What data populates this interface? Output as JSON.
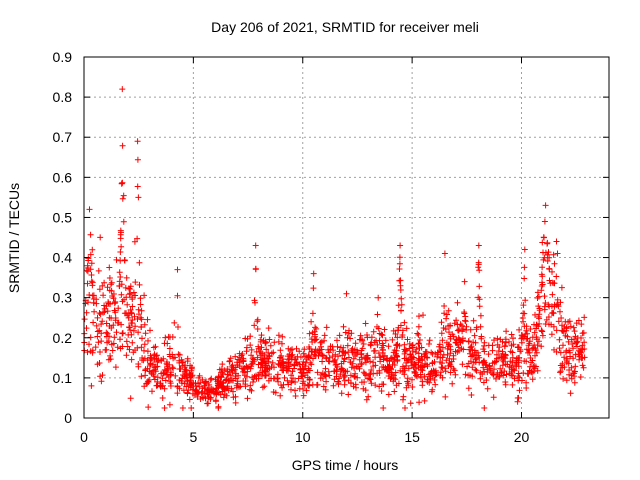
{
  "chart_data": {
    "type": "scatter",
    "title": "Day 206 of 2021, SRMTID for receiver meli",
    "xlabel": "GPS time / hours",
    "ylabel": "SRMTID / TECUs",
    "xlim": [
      0,
      24
    ],
    "ylim": [
      0,
      0.9
    ],
    "xticks": [
      0,
      5,
      10,
      15,
      20
    ],
    "xtick_labels": [
      "0",
      "5",
      "10",
      "15",
      "20"
    ],
    "yticks": [
      0,
      0.1,
      0.2,
      0.3,
      0.4,
      0.5,
      0.6,
      0.7,
      0.8,
      0.9
    ],
    "ytick_labels": [
      "0",
      "0.1",
      "0.2",
      "0.3",
      "0.4",
      "0.5",
      "0.6",
      "0.7",
      "0.8",
      "0.9"
    ],
    "grid": true,
    "marker": "+",
    "marker_color": "#ff0000",
    "x_data_end": 22.9,
    "profile": [
      [
        0.0,
        0.22,
        0.09
      ],
      [
        0.3,
        0.24,
        0.09
      ],
      [
        0.6,
        0.24,
        0.08
      ],
      [
        1.0,
        0.24,
        0.08
      ],
      [
        1.4,
        0.26,
        0.09
      ],
      [
        1.8,
        0.27,
        0.1
      ],
      [
        2.2,
        0.25,
        0.09
      ],
      [
        2.6,
        0.18,
        0.07
      ],
      [
        3.0,
        0.13,
        0.05
      ],
      [
        3.5,
        0.12,
        0.04
      ],
      [
        4.0,
        0.12,
        0.05
      ],
      [
        4.5,
        0.11,
        0.04
      ],
      [
        5.0,
        0.08,
        0.03
      ],
      [
        5.5,
        0.07,
        0.025
      ],
      [
        6.0,
        0.07,
        0.025
      ],
      [
        6.5,
        0.09,
        0.03
      ],
      [
        7.0,
        0.11,
        0.04
      ],
      [
        7.5,
        0.13,
        0.04
      ],
      [
        8.0,
        0.15,
        0.05
      ],
      [
        8.5,
        0.14,
        0.04
      ],
      [
        9.0,
        0.13,
        0.04
      ],
      [
        9.5,
        0.12,
        0.04
      ],
      [
        10.0,
        0.11,
        0.04
      ],
      [
        10.5,
        0.15,
        0.05
      ],
      [
        11.0,
        0.14,
        0.05
      ],
      [
        11.5,
        0.12,
        0.04
      ],
      [
        12.0,
        0.13,
        0.05
      ],
      [
        12.5,
        0.14,
        0.05
      ],
      [
        13.0,
        0.14,
        0.05
      ],
      [
        13.5,
        0.15,
        0.05
      ],
      [
        14.0,
        0.13,
        0.05
      ],
      [
        14.5,
        0.15,
        0.06
      ],
      [
        15.0,
        0.14,
        0.05
      ],
      [
        15.5,
        0.13,
        0.05
      ],
      [
        16.0,
        0.12,
        0.04
      ],
      [
        16.5,
        0.17,
        0.06
      ],
      [
        17.0,
        0.19,
        0.06
      ],
      [
        17.5,
        0.17,
        0.06
      ],
      [
        18.0,
        0.15,
        0.05
      ],
      [
        18.5,
        0.13,
        0.05
      ],
      [
        19.0,
        0.14,
        0.05
      ],
      [
        19.5,
        0.14,
        0.05
      ],
      [
        20.0,
        0.16,
        0.06
      ],
      [
        20.5,
        0.15,
        0.05
      ],
      [
        21.0,
        0.28,
        0.09
      ],
      [
        21.5,
        0.27,
        0.09
      ],
      [
        22.0,
        0.18,
        0.06
      ],
      [
        22.5,
        0.17,
        0.06
      ],
      [
        22.9,
        0.16,
        0.05
      ]
    ],
    "spikes": [
      [
        1.6,
        1.9,
        0.82
      ],
      [
        2.3,
        2.6,
        0.69
      ],
      [
        0.0,
        0.5,
        0.52
      ],
      [
        4.2,
        4.35,
        0.37
      ],
      [
        7.7,
        8.0,
        0.43
      ],
      [
        10.4,
        10.6,
        0.36
      ],
      [
        11.9,
        12.1,
        0.31
      ],
      [
        13.3,
        13.6,
        0.3
      ],
      [
        14.3,
        14.6,
        0.43
      ],
      [
        16.4,
        16.6,
        0.41
      ],
      [
        17.3,
        17.5,
        0.34
      ],
      [
        17.9,
        18.2,
        0.43
      ],
      [
        20.0,
        20.3,
        0.42
      ],
      [
        20.8,
        21.4,
        0.53
      ],
      [
        21.5,
        21.7,
        0.44
      ]
    ]
  }
}
